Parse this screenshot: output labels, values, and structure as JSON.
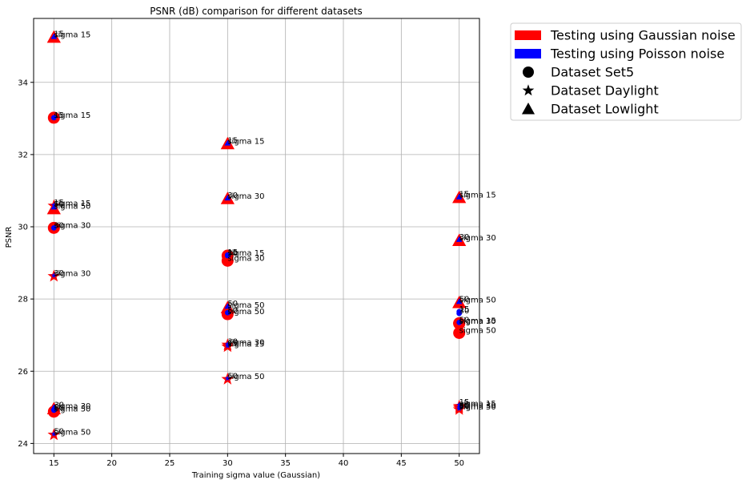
{
  "chart_data": {
    "type": "scatter",
    "title": "PSNR (dB) comparison for different datasets",
    "xlabel": "Training sigma value (Gaussian)",
    "ylabel": "PSNR",
    "xlim": [
      13.25,
      51.75
    ],
    "ylim": [
      23.72,
      35.77
    ],
    "xticks": [
      15,
      20,
      25,
      30,
      35,
      40,
      45,
      50
    ],
    "yticks": [
      24,
      26,
      28,
      30,
      32,
      34
    ],
    "grid": true,
    "legend_position": "outside-top-right",
    "legend": [
      {
        "label": "Testing using Gaussian noise",
        "kind": "patch",
        "color": "#ff0000"
      },
      {
        "label": "Testing using Poisson noise",
        "kind": "patch",
        "color": "#0000ff"
      },
      {
        "label": "Dataset Set5",
        "kind": "marker",
        "marker": "circle"
      },
      {
        "label": "Dataset Daylight",
        "kind": "marker",
        "marker": "star"
      },
      {
        "label": "Dataset Lowlight",
        "kind": "marker",
        "marker": "triangle"
      }
    ],
    "colors": {
      "gaussian": "#ff0000",
      "poisson": "#0000ff"
    },
    "series": [
      {
        "name": "Dataset Set5",
        "noise": "gaussian",
        "marker": "circle",
        "points": [
          {
            "x": 15,
            "y": 33.02,
            "label": "sigma 15"
          },
          {
            "x": 15,
            "y": 29.97,
            "label": "sigma 30"
          },
          {
            "x": 15,
            "y": 24.88,
            "label": "sigma 50"
          },
          {
            "x": 30,
            "y": 29.2,
            "label": "sigma 15"
          },
          {
            "x": 30,
            "y": 29.06,
            "label": "sigma 30"
          },
          {
            "x": 30,
            "y": 27.58,
            "label": "sigma 50"
          },
          {
            "x": 50,
            "y": 27.33,
            "label": "sigma 15"
          },
          {
            "x": 50,
            "y": 27.32,
            "label": "sigma 30"
          },
          {
            "x": 50,
            "y": 27.06,
            "label": "sigma 50"
          }
        ]
      },
      {
        "name": "Dataset Set5",
        "noise": "poisson",
        "marker": "circle",
        "points": [
          {
            "x": 15,
            "y": 33.02,
            "label": "15"
          },
          {
            "x": 15,
            "y": 29.97,
            "label": "30"
          },
          {
            "x": 15,
            "y": 24.92,
            "label": "50"
          },
          {
            "x": 30,
            "y": 29.22,
            "label": "15"
          },
          {
            "x": 30,
            "y": 29.2,
            "label": "30"
          },
          {
            "x": 30,
            "y": 27.62,
            "label": "50"
          },
          {
            "x": 50,
            "y": 27.65,
            "label": "15"
          },
          {
            "x": 50,
            "y": 27.6,
            "label": "30"
          },
          {
            "x": 50,
            "y": 27.35,
            "label": "50"
          }
        ]
      },
      {
        "name": "Dataset Daylight",
        "noise": "gaussian",
        "marker": "star",
        "points": [
          {
            "x": 15,
            "y": 30.58,
            "label": "sigma 15"
          },
          {
            "x": 15,
            "y": 28.63,
            "label": "sigma 30"
          },
          {
            "x": 15,
            "y": 24.24,
            "label": "sigma 50"
          },
          {
            "x": 30,
            "y": 26.68,
            "label": "sigma 15"
          },
          {
            "x": 30,
            "y": 26.73,
            "label": "sigma 30"
          },
          {
            "x": 30,
            "y": 25.78,
            "label": "sigma 50"
          },
          {
            "x": 50,
            "y": 25.03,
            "label": "sigma 15"
          },
          {
            "x": 50,
            "y": 24.99,
            "label": "sigma 30"
          },
          {
            "x": 50,
            "y": 24.94,
            "label": "sigma 50"
          }
        ]
      },
      {
        "name": "Dataset Daylight",
        "noise": "poisson",
        "marker": "star",
        "points": [
          {
            "x": 15,
            "y": 30.6,
            "label": "15"
          },
          {
            "x": 15,
            "y": 28.65,
            "label": "30"
          },
          {
            "x": 15,
            "y": 24.26,
            "label": "50"
          },
          {
            "x": 30,
            "y": 26.7,
            "label": "15"
          },
          {
            "x": 30,
            "y": 26.75,
            "label": "30"
          },
          {
            "x": 30,
            "y": 25.8,
            "label": "50"
          },
          {
            "x": 50,
            "y": 25.07,
            "label": "15"
          },
          {
            "x": 50,
            "y": 25.0,
            "label": "30"
          },
          {
            "x": 50,
            "y": 24.96,
            "label": "50"
          }
        ]
      },
      {
        "name": "Dataset Lowlight",
        "noise": "gaussian",
        "marker": "triangle",
        "points": [
          {
            "x": 15,
            "y": 35.25,
            "label": "sigma 15"
          },
          {
            "x": 15,
            "y": 24.96,
            "label": "sigma 30"
          },
          {
            "x": 15,
            "y": 30.5,
            "label": "sigma 50"
          },
          {
            "x": 30,
            "y": 32.3,
            "label": "sigma 15"
          },
          {
            "x": 30,
            "y": 30.78,
            "label": "sigma 30"
          },
          {
            "x": 30,
            "y": 27.76,
            "label": "sigma 50"
          },
          {
            "x": 50,
            "y": 30.81,
            "label": "sigma 15"
          },
          {
            "x": 50,
            "y": 29.62,
            "label": "sigma 30"
          },
          {
            "x": 50,
            "y": 27.9,
            "label": "sigma 50"
          }
        ]
      },
      {
        "name": "Dataset Lowlight",
        "noise": "poisson",
        "marker": "triangle",
        "points": [
          {
            "x": 15,
            "y": 35.27,
            "label": "15"
          },
          {
            "x": 15,
            "y": 25.0,
            "label": "30"
          },
          {
            "x": 15,
            "y": 30.55,
            "label": "50"
          },
          {
            "x": 30,
            "y": 32.32,
            "label": "15"
          },
          {
            "x": 30,
            "y": 30.8,
            "label": "30"
          },
          {
            "x": 30,
            "y": 27.8,
            "label": "50"
          },
          {
            "x": 50,
            "y": 30.83,
            "label": "15"
          },
          {
            "x": 50,
            "y": 29.65,
            "label": "30"
          },
          {
            "x": 50,
            "y": 27.93,
            "label": "50"
          }
        ]
      }
    ]
  }
}
